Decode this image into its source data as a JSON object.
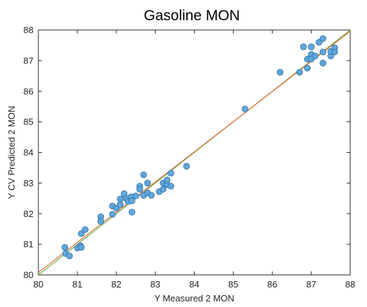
{
  "chart_data": {
    "type": "scatter",
    "title": "Gasoline MON",
    "xlabel": "Y Measured 2 MON",
    "ylabel": "Y CV Predicted 2 MON",
    "xlim": [
      80,
      88
    ],
    "ylim": [
      80,
      88
    ],
    "xticks": [
      "80",
      "81",
      "82",
      "83",
      "84",
      "85",
      "86",
      "87",
      "88"
    ],
    "yticks": [
      "80",
      "81",
      "82",
      "83",
      "84",
      "85",
      "86",
      "87",
      "88"
    ],
    "grid": false,
    "legend": "none",
    "marker_color": "#5fa8dc",
    "marker_edge_color": "#2d6a9e",
    "lines": [
      {
        "x": [
          80,
          88
        ],
        "y": [
          80,
          88
        ],
        "color": "#6ab04c"
      },
      {
        "x": [
          80,
          88
        ],
        "y": [
          80.08,
          87.96
        ],
        "color": "#e0703a"
      }
    ],
    "series": [
      {
        "points": [
          [
            80.68,
            80.9
          ],
          [
            80.7,
            80.7
          ],
          [
            80.8,
            80.62
          ],
          [
            81.0,
            80.88
          ],
          [
            81.08,
            80.95
          ],
          [
            81.1,
            80.9
          ],
          [
            81.1,
            81.35
          ],
          [
            81.2,
            81.48
          ],
          [
            81.6,
            81.9
          ],
          [
            81.6,
            81.75
          ],
          [
            81.9,
            81.98
          ],
          [
            81.9,
            82.25
          ],
          [
            82.0,
            82.18
          ],
          [
            82.1,
            82.3
          ],
          [
            82.1,
            82.48
          ],
          [
            82.2,
            82.65
          ],
          [
            82.25,
            82.5
          ],
          [
            82.3,
            82.4
          ],
          [
            82.38,
            82.55
          ],
          [
            82.4,
            82.05
          ],
          [
            82.4,
            82.42
          ],
          [
            82.5,
            82.58
          ],
          [
            82.6,
            82.9
          ],
          [
            82.6,
            82.8
          ],
          [
            82.7,
            83.27
          ],
          [
            82.7,
            82.6
          ],
          [
            82.8,
            83.0
          ],
          [
            82.8,
            82.68
          ],
          [
            82.9,
            82.6
          ],
          [
            83.1,
            82.72
          ],
          [
            83.2,
            82.8
          ],
          [
            83.2,
            83.0
          ],
          [
            83.3,
            82.95
          ],
          [
            83.3,
            83.1
          ],
          [
            83.4,
            82.9
          ],
          [
            83.4,
            83.32
          ],
          [
            83.8,
            83.55
          ],
          [
            85.3,
            85.42
          ],
          [
            86.2,
            86.62
          ],
          [
            86.7,
            86.62
          ],
          [
            86.8,
            87.45
          ],
          [
            86.9,
            87.05
          ],
          [
            86.9,
            86.75
          ],
          [
            87.0,
            87.45
          ],
          [
            87.0,
            87.2
          ],
          [
            87.0,
            87.05
          ],
          [
            87.1,
            87.15
          ],
          [
            87.2,
            87.6
          ],
          [
            87.3,
            87.72
          ],
          [
            87.3,
            87.28
          ],
          [
            87.3,
            86.92
          ],
          [
            87.5,
            87.15
          ],
          [
            87.5,
            87.3
          ],
          [
            87.6,
            87.42
          ],
          [
            87.6,
            87.28
          ]
        ]
      }
    ]
  }
}
